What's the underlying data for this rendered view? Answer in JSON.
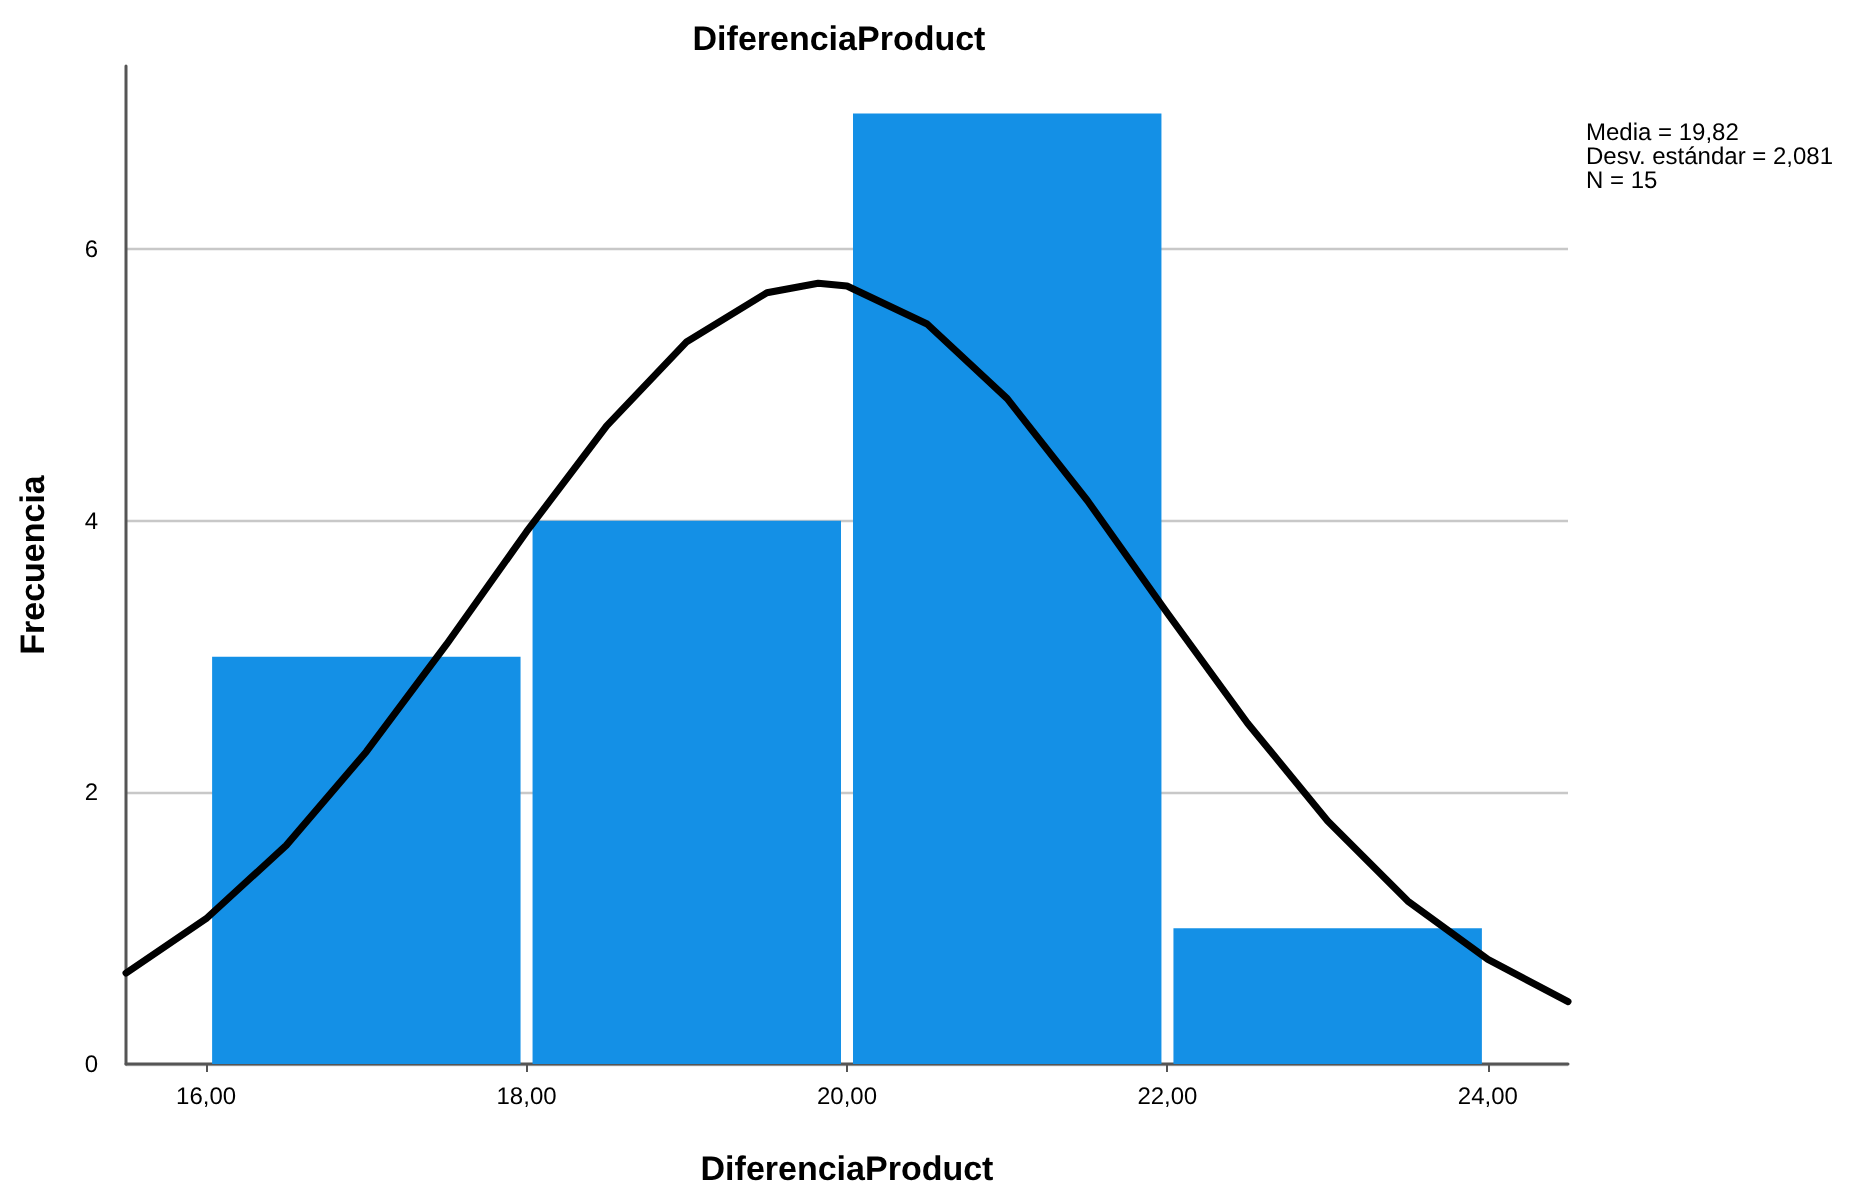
{
  "chart_data": {
    "type": "histogram",
    "title": "DiferenciaProduct",
    "xlabel": "DiferenciaProduct",
    "ylabel": "Frecuencia",
    "bins": [
      16,
      18,
      20,
      22,
      24
    ],
    "values": [
      3,
      4,
      7,
      1
    ],
    "color": "#1490e6",
    "series": [
      {
        "type": "line",
        "color": "#000000",
        "x": [
          15.5,
          16,
          16.5,
          17,
          17.5,
          18,
          18.5,
          19,
          19.5,
          19.82,
          20,
          20.5,
          21,
          21.5,
          22,
          22.5,
          23,
          23.5,
          24,
          24.5
        ],
        "values": [
          0.67,
          1.07,
          1.61,
          2.3,
          3.09,
          3.92,
          4.7,
          5.32,
          5.68,
          5.75,
          5.73,
          5.45,
          4.9,
          4.15,
          3.32,
          2.51,
          1.79,
          1.2,
          0.77,
          0.46
        ]
      }
    ],
    "xlim": [
      15.5,
      24.5
    ],
    "ylim": [
      0,
      7.35
    ],
    "xticks": [
      {
        "value": 16,
        "label": "16,00"
      },
      {
        "value": 18,
        "label": "18,00"
      },
      {
        "value": 20,
        "label": "20,00"
      },
      {
        "value": 22,
        "label": "22,00"
      },
      {
        "value": 24,
        "label": "24,00"
      }
    ],
    "yticks": [
      0,
      2,
      4,
      6
    ],
    "grid": "y",
    "marker": "none",
    "line_style": "solid",
    "annotations": [
      "Media = 19,82",
      "Desv. estándar = 2,081",
      "N = 15"
    ]
  }
}
